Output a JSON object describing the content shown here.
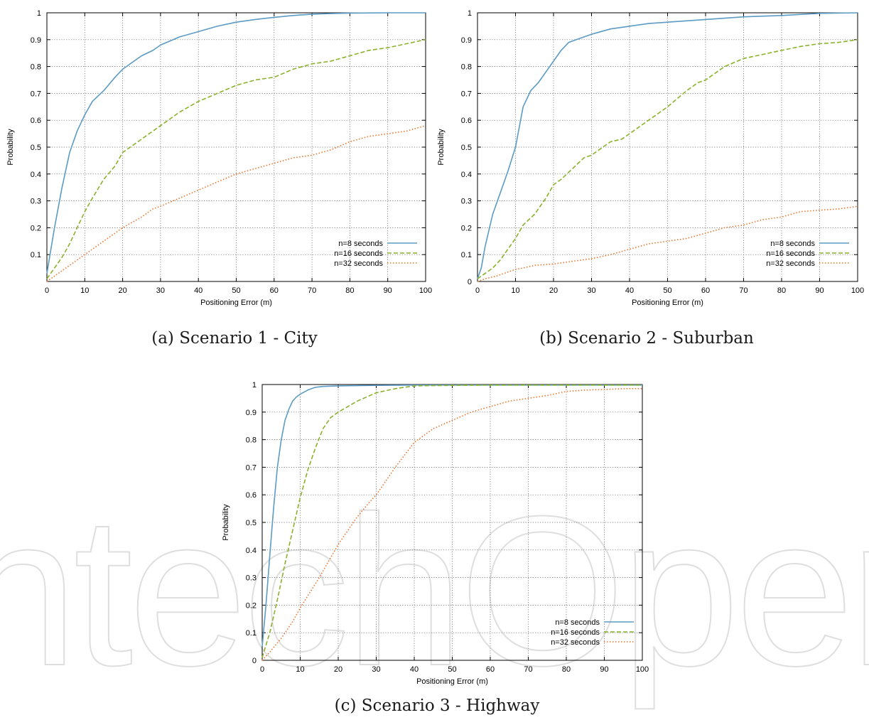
{
  "figure": {
    "watermark_text": "IntechOpen",
    "captions": [
      "(a)  Scenario 1 - City",
      "(b)  Scenario 2 - Suburban",
      "(c)  Scenario 3 - Highway"
    ]
  },
  "colors": {
    "n8": "#5b9bc4",
    "n16": "#8ab22a",
    "n32": "#e8762c"
  },
  "chart_data": [
    {
      "type": "line",
      "caption": "(a)  Scenario 1 - City",
      "xlabel": "Positioning Error (m)",
      "ylabel": "Probability",
      "xlim": [
        0,
        100
      ],
      "ylim": [
        0,
        1
      ],
      "xticks": [
        0,
        10,
        20,
        30,
        40,
        50,
        60,
        70,
        80,
        90,
        100
      ],
      "yticks": [
        0.1,
        0.2,
        0.3,
        0.4,
        0.5,
        0.6,
        0.7,
        0.8,
        0.9,
        1
      ],
      "grid": true,
      "legend_position": "bottom-right",
      "series": [
        {
          "name": "n=8 seconds",
          "color": "#5b9bc4",
          "dash": "",
          "x": [
            0,
            2,
            4,
            6,
            8,
            10,
            12,
            15,
            18,
            20,
            23,
            25,
            28,
            30,
            35,
            40,
            45,
            50,
            55,
            60,
            65,
            70,
            75,
            80,
            90,
            100
          ],
          "y": [
            0.03,
            0.2,
            0.35,
            0.48,
            0.56,
            0.62,
            0.67,
            0.71,
            0.76,
            0.79,
            0.82,
            0.84,
            0.86,
            0.88,
            0.91,
            0.93,
            0.95,
            0.965,
            0.975,
            0.983,
            0.99,
            0.995,
            0.997,
            0.999,
            1.0,
            1.0
          ]
        },
        {
          "name": "n=16 seconds",
          "color": "#8ab22a",
          "dash": "6 3",
          "x": [
            0,
            2,
            4,
            6,
            8,
            10,
            12,
            15,
            18,
            20,
            25,
            30,
            35,
            40,
            45,
            50,
            55,
            60,
            65,
            70,
            75,
            80,
            85,
            90,
            95,
            100
          ],
          "y": [
            0.01,
            0.05,
            0.09,
            0.14,
            0.2,
            0.26,
            0.31,
            0.38,
            0.43,
            0.48,
            0.53,
            0.58,
            0.63,
            0.67,
            0.7,
            0.73,
            0.75,
            0.76,
            0.79,
            0.81,
            0.82,
            0.84,
            0.86,
            0.87,
            0.885,
            0.9
          ]
        },
        {
          "name": "n=32 seconds",
          "color": "#e8762c",
          "dash": "1.5 2.5",
          "x": [
            0,
            5,
            10,
            15,
            20,
            25,
            28,
            30,
            35,
            40,
            45,
            50,
            55,
            60,
            65,
            70,
            75,
            80,
            85,
            90,
            95,
            100
          ],
          "y": [
            0.0,
            0.05,
            0.1,
            0.15,
            0.2,
            0.24,
            0.27,
            0.28,
            0.31,
            0.34,
            0.37,
            0.4,
            0.42,
            0.44,
            0.46,
            0.47,
            0.49,
            0.52,
            0.54,
            0.55,
            0.56,
            0.58
          ]
        }
      ]
    },
    {
      "type": "line",
      "caption": "(b)  Scenario 2 - Suburban",
      "xlabel": "Positioning Error (m)",
      "ylabel": "Probability",
      "xlim": [
        0,
        100
      ],
      "ylim": [
        0,
        1
      ],
      "xticks": [
        0,
        10,
        20,
        30,
        40,
        50,
        60,
        70,
        80,
        90,
        100
      ],
      "yticks": [
        0,
        0.1,
        0.2,
        0.3,
        0.4,
        0.5,
        0.6,
        0.7,
        0.8,
        0.9,
        1
      ],
      "grid": true,
      "legend_position": "bottom-right",
      "series": [
        {
          "name": "n=8 seconds",
          "color": "#5b9bc4",
          "dash": "",
          "x": [
            0,
            1,
            2,
            4,
            6,
            8,
            10,
            12,
            14,
            16,
            18,
            20,
            22,
            24,
            26,
            28,
            30,
            35,
            40,
            45,
            50,
            55,
            60,
            65,
            70,
            80,
            90,
            100
          ],
          "y": [
            0.01,
            0.05,
            0.13,
            0.25,
            0.33,
            0.41,
            0.5,
            0.65,
            0.71,
            0.74,
            0.78,
            0.82,
            0.86,
            0.89,
            0.9,
            0.91,
            0.92,
            0.94,
            0.95,
            0.96,
            0.965,
            0.97,
            0.975,
            0.98,
            0.985,
            0.99,
            0.998,
            1.0
          ]
        },
        {
          "name": "n=16 seconds",
          "color": "#8ab22a",
          "dash": "6 3",
          "x": [
            0,
            2,
            4,
            6,
            8,
            10,
            12,
            15,
            18,
            20,
            22,
            25,
            28,
            30,
            35,
            38,
            40,
            45,
            50,
            55,
            58,
            60,
            65,
            70,
            75,
            80,
            85,
            90,
            95,
            100
          ],
          "y": [
            0.01,
            0.03,
            0.05,
            0.08,
            0.12,
            0.16,
            0.21,
            0.25,
            0.31,
            0.36,
            0.38,
            0.42,
            0.46,
            0.47,
            0.52,
            0.53,
            0.55,
            0.6,
            0.65,
            0.71,
            0.74,
            0.75,
            0.8,
            0.83,
            0.845,
            0.86,
            0.875,
            0.885,
            0.89,
            0.9
          ]
        },
        {
          "name": "n=32 seconds",
          "color": "#e8762c",
          "dash": "1.5 2.5",
          "x": [
            0,
            2,
            5,
            8,
            10,
            12,
            15,
            20,
            25,
            30,
            35,
            40,
            45,
            50,
            55,
            60,
            65,
            70,
            75,
            80,
            85,
            90,
            95,
            100
          ],
          "y": [
            0.0,
            0.01,
            0.02,
            0.035,
            0.045,
            0.05,
            0.06,
            0.065,
            0.075,
            0.085,
            0.1,
            0.12,
            0.14,
            0.15,
            0.16,
            0.18,
            0.2,
            0.21,
            0.23,
            0.24,
            0.26,
            0.265,
            0.27,
            0.28
          ]
        }
      ]
    },
    {
      "type": "line",
      "caption": "(c)  Scenario 3 - Highway",
      "xlabel": "Positioning Error (m)",
      "ylabel": "Probability",
      "xlim": [
        0,
        100
      ],
      "ylim": [
        0,
        1
      ],
      "xticks": [
        0,
        10,
        20,
        30,
        40,
        50,
        60,
        70,
        80,
        90,
        100
      ],
      "yticks": [
        0,
        0.1,
        0.2,
        0.3,
        0.4,
        0.5,
        0.6,
        0.7,
        0.8,
        0.9,
        1
      ],
      "grid": true,
      "legend_position": "bottom-right",
      "series": [
        {
          "name": "n=8 seconds",
          "color": "#5b9bc4",
          "dash": "",
          "x": [
            0,
            1,
            2,
            3,
            4,
            5,
            6,
            7,
            8,
            9,
            10,
            12,
            14,
            16,
            20,
            30,
            40,
            100
          ],
          "y": [
            0.05,
            0.2,
            0.38,
            0.55,
            0.7,
            0.8,
            0.87,
            0.91,
            0.94,
            0.955,
            0.965,
            0.98,
            0.99,
            0.993,
            0.995,
            0.997,
            0.998,
            0.998
          ]
        },
        {
          "name": "n=16 seconds",
          "color": "#8ab22a",
          "dash": "6 3",
          "x": [
            0,
            2,
            4,
            6,
            8,
            10,
            12,
            14,
            16,
            18,
            20,
            25,
            30,
            35,
            40,
            50,
            60,
            100
          ],
          "y": [
            0.01,
            0.1,
            0.22,
            0.35,
            0.47,
            0.59,
            0.69,
            0.77,
            0.84,
            0.88,
            0.9,
            0.94,
            0.97,
            0.985,
            0.995,
            0.997,
            0.998,
            0.998
          ]
        },
        {
          "name": "n=32 seconds",
          "color": "#e8762c",
          "dash": "1.5 2.5",
          "x": [
            0,
            2,
            5,
            8,
            10,
            15,
            20,
            25,
            28,
            30,
            35,
            40,
            45,
            50,
            55,
            60,
            65,
            70,
            75,
            80,
            85,
            90,
            95,
            100
          ],
          "y": [
            0.0,
            0.03,
            0.08,
            0.14,
            0.19,
            0.3,
            0.42,
            0.52,
            0.57,
            0.6,
            0.7,
            0.79,
            0.84,
            0.87,
            0.9,
            0.92,
            0.94,
            0.95,
            0.96,
            0.975,
            0.98,
            0.982,
            0.985,
            0.985
          ]
        }
      ]
    }
  ]
}
